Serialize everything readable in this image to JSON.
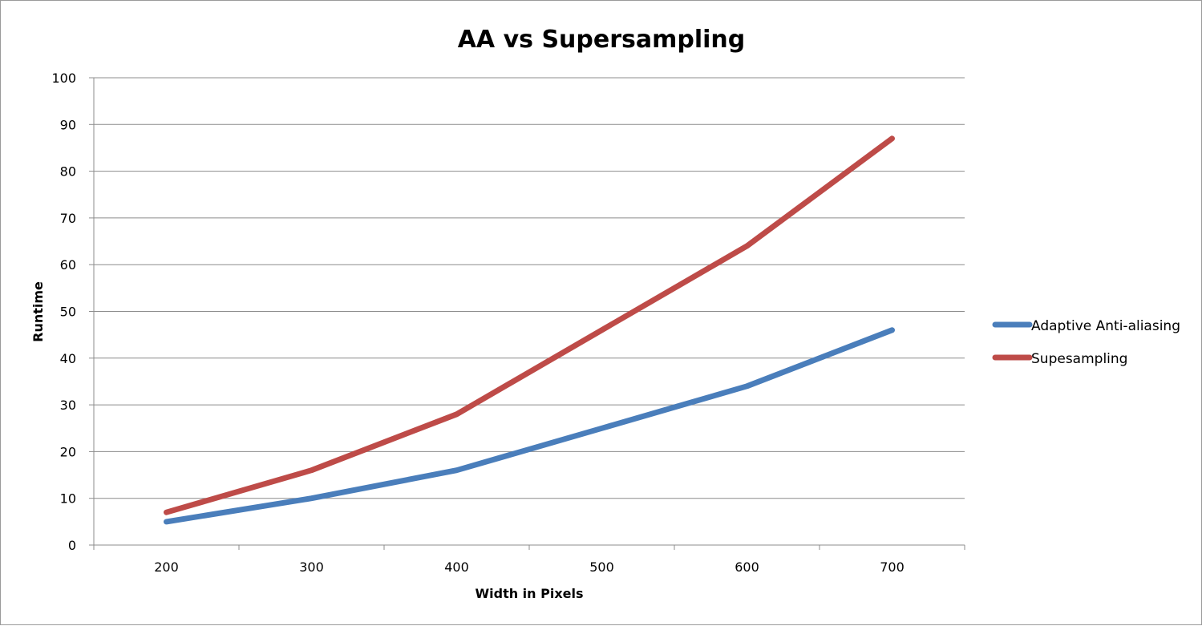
{
  "chart_data": {
    "type": "line",
    "title": "AA vs Supersampling",
    "xlabel": "Width in Pixels",
    "ylabel": "Runtime",
    "categories": [
      "200",
      "300",
      "400",
      "500",
      "600",
      "700"
    ],
    "ylim": [
      0,
      100
    ],
    "yticks": [
      "0",
      "10",
      "20",
      "30",
      "40",
      "50",
      "60",
      "70",
      "80",
      "90",
      "100"
    ],
    "grid": true,
    "legend_position": "right",
    "series": [
      {
        "name": "Adaptive Anti-aliasing",
        "color": "#4a7ebb",
        "values": [
          5,
          10,
          16,
          25,
          34,
          46
        ]
      },
      {
        "name": "Supesampling",
        "color": "#be4b48",
        "values": [
          7,
          16,
          28,
          46,
          64,
          87
        ]
      }
    ]
  }
}
